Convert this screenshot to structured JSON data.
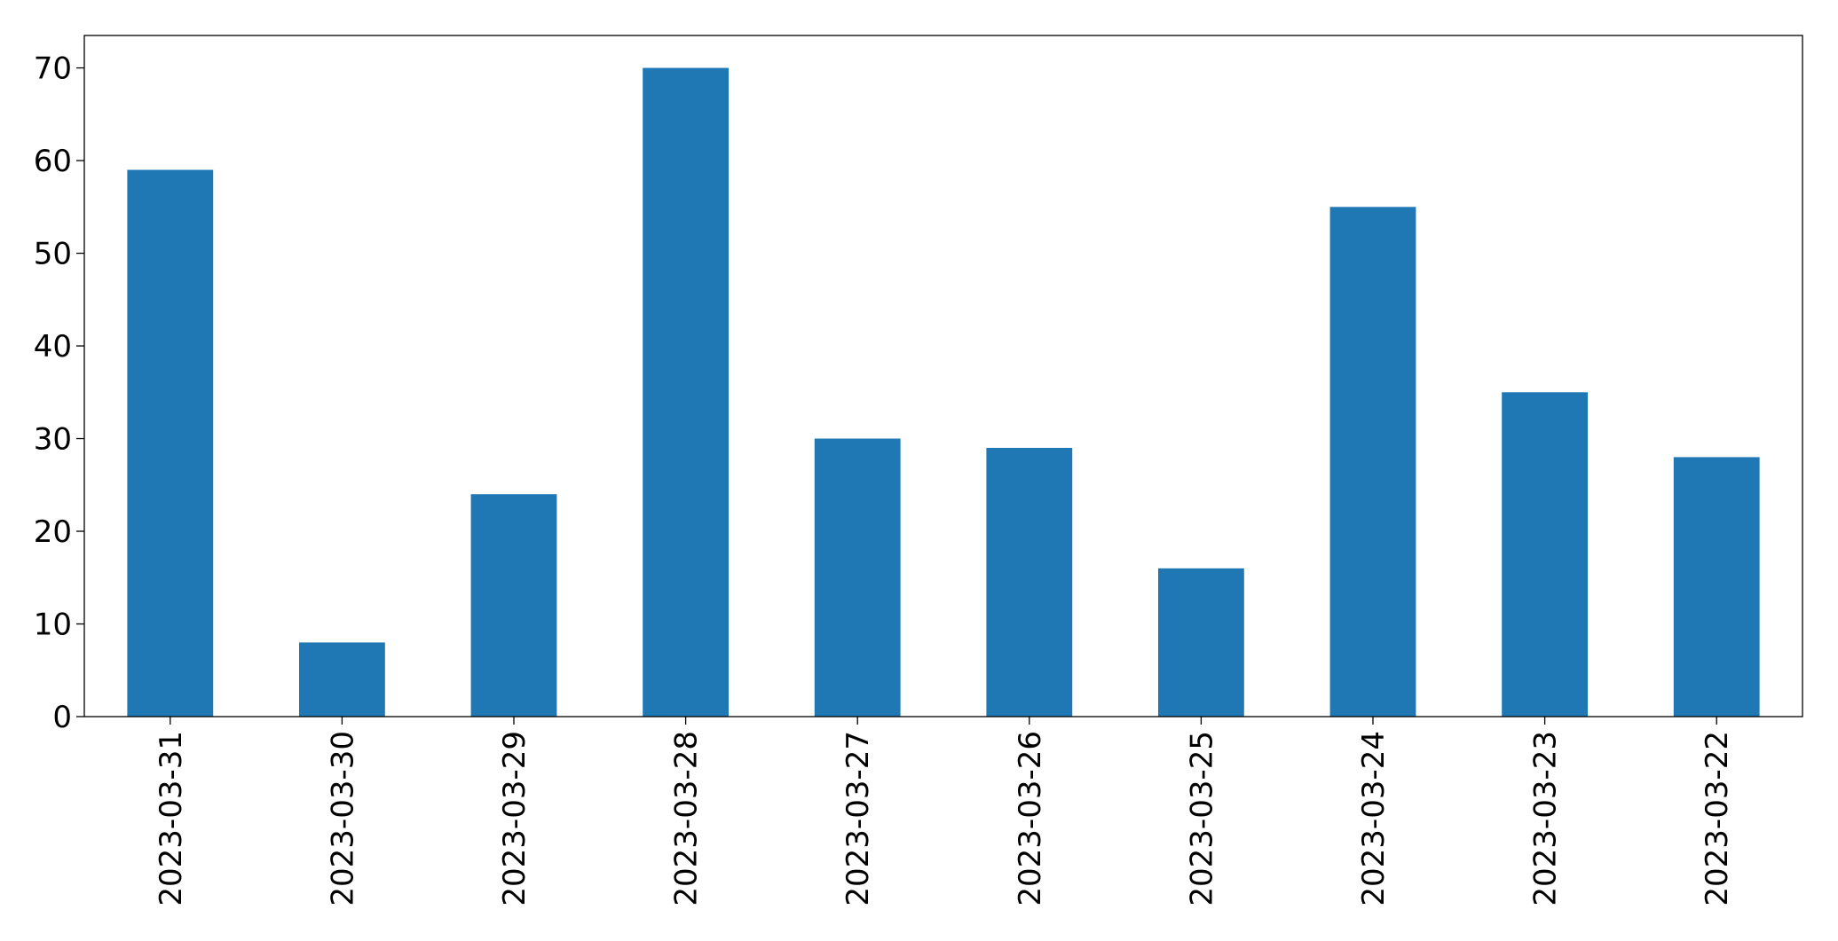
{
  "chart_data": {
    "type": "bar",
    "categories": [
      "2023-03-31",
      "2023-03-30",
      "2023-03-29",
      "2023-03-28",
      "2023-03-27",
      "2023-03-26",
      "2023-03-25",
      "2023-03-24",
      "2023-03-23",
      "2023-03-22"
    ],
    "values": [
      59,
      8,
      24,
      70,
      30,
      29,
      16,
      55,
      35,
      28
    ],
    "color": "#1f77b4",
    "ylim": [
      0,
      73.5
    ],
    "yticks": [
      0,
      10,
      20,
      30,
      40,
      50,
      60,
      70
    ],
    "grid": false
  }
}
